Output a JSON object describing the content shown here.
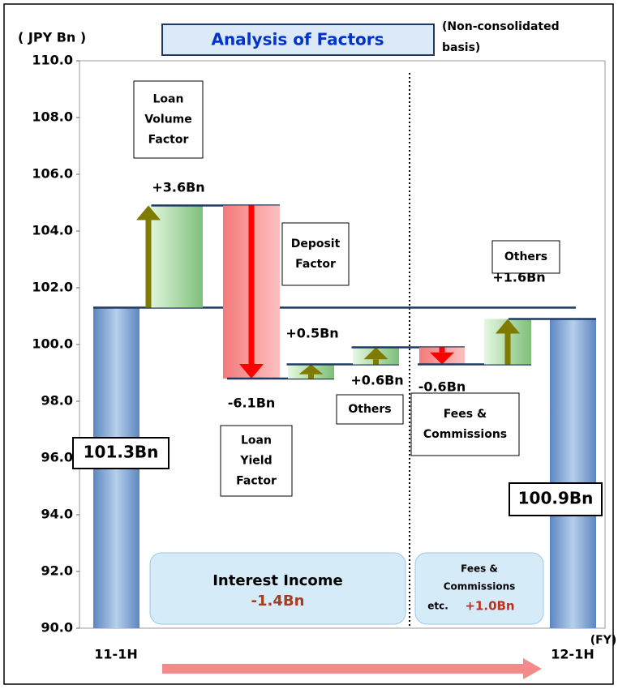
{
  "chart_data": {
    "type": "waterfall",
    "title": "Analysis of Factors",
    "y_label": "( JPY Bn )",
    "subtitle": [
      "(Non-consolidated",
      "basis)"
    ],
    "x_unit": "(FY)",
    "categories": [
      "11-1H",
      null,
      null,
      null,
      null,
      null,
      null,
      "12-1H"
    ],
    "values": [
      101.3,
      3.6,
      -6.1,
      0.5,
      0.6,
      -0.6,
      1.6,
      100.9
    ],
    "value_labels": [
      "101.3Bn",
      "+3.6Bn",
      "-6.1Bn",
      "+0.5Bn",
      "+0.6Bn",
      "-0.6Bn",
      "+1.6Bn",
      "100.9Bn"
    ],
    "measures": [
      "total",
      "relative",
      "relative",
      "relative",
      "relative",
      "relative",
      "relative",
      "total"
    ],
    "colors": {
      "total": "#6f9ad0",
      "up": "#9fd89a",
      "down": "#f47a7a",
      "up_arrow": "#7f7a00",
      "down_arrow": "#ff0000",
      "connector": "#1f3864"
    },
    "ylim": [
      90,
      110
    ],
    "yticks": [
      {
        "value": 90,
        "label": "90.0"
      },
      {
        "value": 92,
        "label": "92.0"
      },
      {
        "value": 94,
        "label": "94.0"
      },
      {
        "value": 96,
        "label": "96.0"
      },
      {
        "value": 98,
        "label": "98.0"
      },
      {
        "value": 100,
        "label": "100.0"
      },
      {
        "value": 102,
        "label": "102.0"
      },
      {
        "value": 104,
        "label": "104.0"
      },
      {
        "value": 106,
        "label": "106.0"
      },
      {
        "value": 108,
        "label": "108.0"
      },
      {
        "value": 110,
        "label": "110.0"
      }
    ],
    "annotations": [
      {
        "text": [
          "Loan",
          "Volume",
          "Factor"
        ]
      },
      {
        "text": [
          "Deposit",
          "Factor"
        ]
      },
      {
        "text": [
          "Loan",
          "Yield",
          "Factor"
        ]
      },
      {
        "text": [
          "Others"
        ]
      },
      {
        "text": [
          "Fees &",
          "Commissions"
        ]
      },
      {
        "text": [
          "Others"
        ]
      }
    ],
    "groups": [
      {
        "name": [
          "Interest Income"
        ],
        "value": -1.4,
        "value_label": "-1.4Bn"
      },
      {
        "name": [
          "Fees &",
          "Commissions",
          "etc."
        ],
        "value": 1.0,
        "value_label": "+1.0Bn"
      }
    ]
  }
}
